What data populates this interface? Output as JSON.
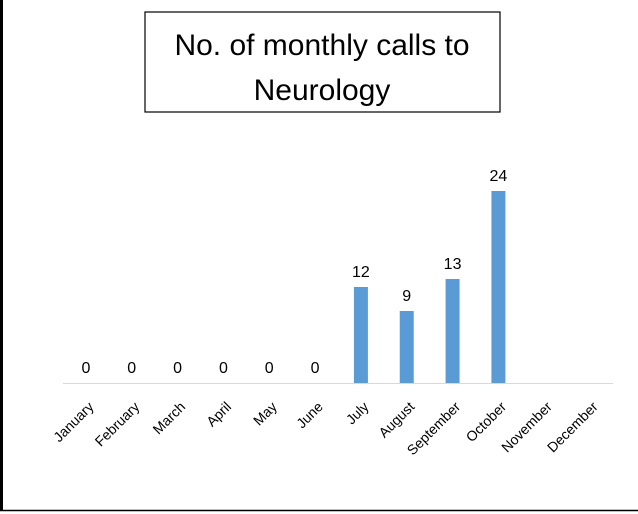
{
  "chart_data": {
    "type": "bar",
    "title": [
      "No. of monthly calls to",
      "Neurology"
    ],
    "categories": [
      "January",
      "February",
      "March",
      "April",
      "May",
      "June",
      "July",
      "August",
      "September",
      "October",
      "November",
      "December"
    ],
    "values": [
      0,
      0,
      0,
      0,
      0,
      0,
      12,
      9,
      13,
      24,
      null,
      null
    ],
    "color": "#5b9bd5"
  }
}
